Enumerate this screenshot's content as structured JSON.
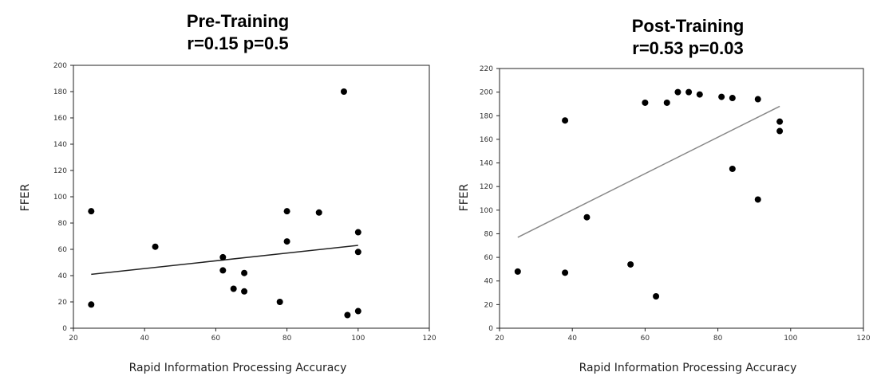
{
  "chart_data": [
    {
      "type": "scatter",
      "title": "Pre-Training",
      "subtitle": "r=0.15 p=0.5",
      "xlabel": "Rapid Information Processing Accuracy",
      "ylabel": "FFER",
      "xlim": [
        20,
        120
      ],
      "ylim": [
        0,
        200
      ],
      "xticks": [
        "20",
        "40",
        "60",
        "80",
        "100",
        "120"
      ],
      "yticks": [
        "0",
        "20",
        "40",
        "60",
        "80",
        "100",
        "120",
        "140",
        "160",
        "180",
        "200"
      ],
      "grid": false,
      "points": [
        {
          "x": 25,
          "y": 89
        },
        {
          "x": 25,
          "y": 18
        },
        {
          "x": 43,
          "y": 62
        },
        {
          "x": 62,
          "y": 54
        },
        {
          "x": 62,
          "y": 44
        },
        {
          "x": 65,
          "y": 30
        },
        {
          "x": 68,
          "y": 42
        },
        {
          "x": 68,
          "y": 28
        },
        {
          "x": 78,
          "y": 20
        },
        {
          "x": 80,
          "y": 89
        },
        {
          "x": 80,
          "y": 66
        },
        {
          "x": 89,
          "y": 88
        },
        {
          "x": 96,
          "y": 180
        },
        {
          "x": 97,
          "y": 10
        },
        {
          "x": 100,
          "y": 73
        },
        {
          "x": 100,
          "y": 58
        },
        {
          "x": 100,
          "y": 13
        }
      ],
      "trendline": {
        "x": [
          25,
          100
        ],
        "y": [
          41,
          63
        ]
      }
    },
    {
      "type": "scatter",
      "title": "Post-Training",
      "subtitle": "r=0.53 p=0.03",
      "xlabel": "Rapid Information Processing Accuracy",
      "ylabel": "FFER",
      "xlim": [
        20,
        120
      ],
      "ylim": [
        0,
        220
      ],
      "xticks": [
        "20",
        "40",
        "60",
        "80",
        "100",
        "120"
      ],
      "yticks": [
        "0",
        "20",
        "40",
        "60",
        "80",
        "100",
        "120",
        "140",
        "160",
        "180",
        "200",
        "220"
      ],
      "grid": false,
      "points": [
        {
          "x": 25,
          "y": 48
        },
        {
          "x": 38,
          "y": 176
        },
        {
          "x": 38,
          "y": 47
        },
        {
          "x": 44,
          "y": 94
        },
        {
          "x": 56,
          "y": 54
        },
        {
          "x": 60,
          "y": 191
        },
        {
          "x": 63,
          "y": 27
        },
        {
          "x": 66,
          "y": 191
        },
        {
          "x": 69,
          "y": 200
        },
        {
          "x": 72,
          "y": 200
        },
        {
          "x": 75,
          "y": 198
        },
        {
          "x": 81,
          "y": 196
        },
        {
          "x": 84,
          "y": 195
        },
        {
          "x": 84,
          "y": 135
        },
        {
          "x": 91,
          "y": 194
        },
        {
          "x": 91,
          "y": 109
        },
        {
          "x": 97,
          "y": 175
        },
        {
          "x": 97,
          "y": 167
        }
      ],
      "trendline": {
        "x": [
          25,
          97
        ],
        "y": [
          77,
          188
        ]
      }
    }
  ]
}
